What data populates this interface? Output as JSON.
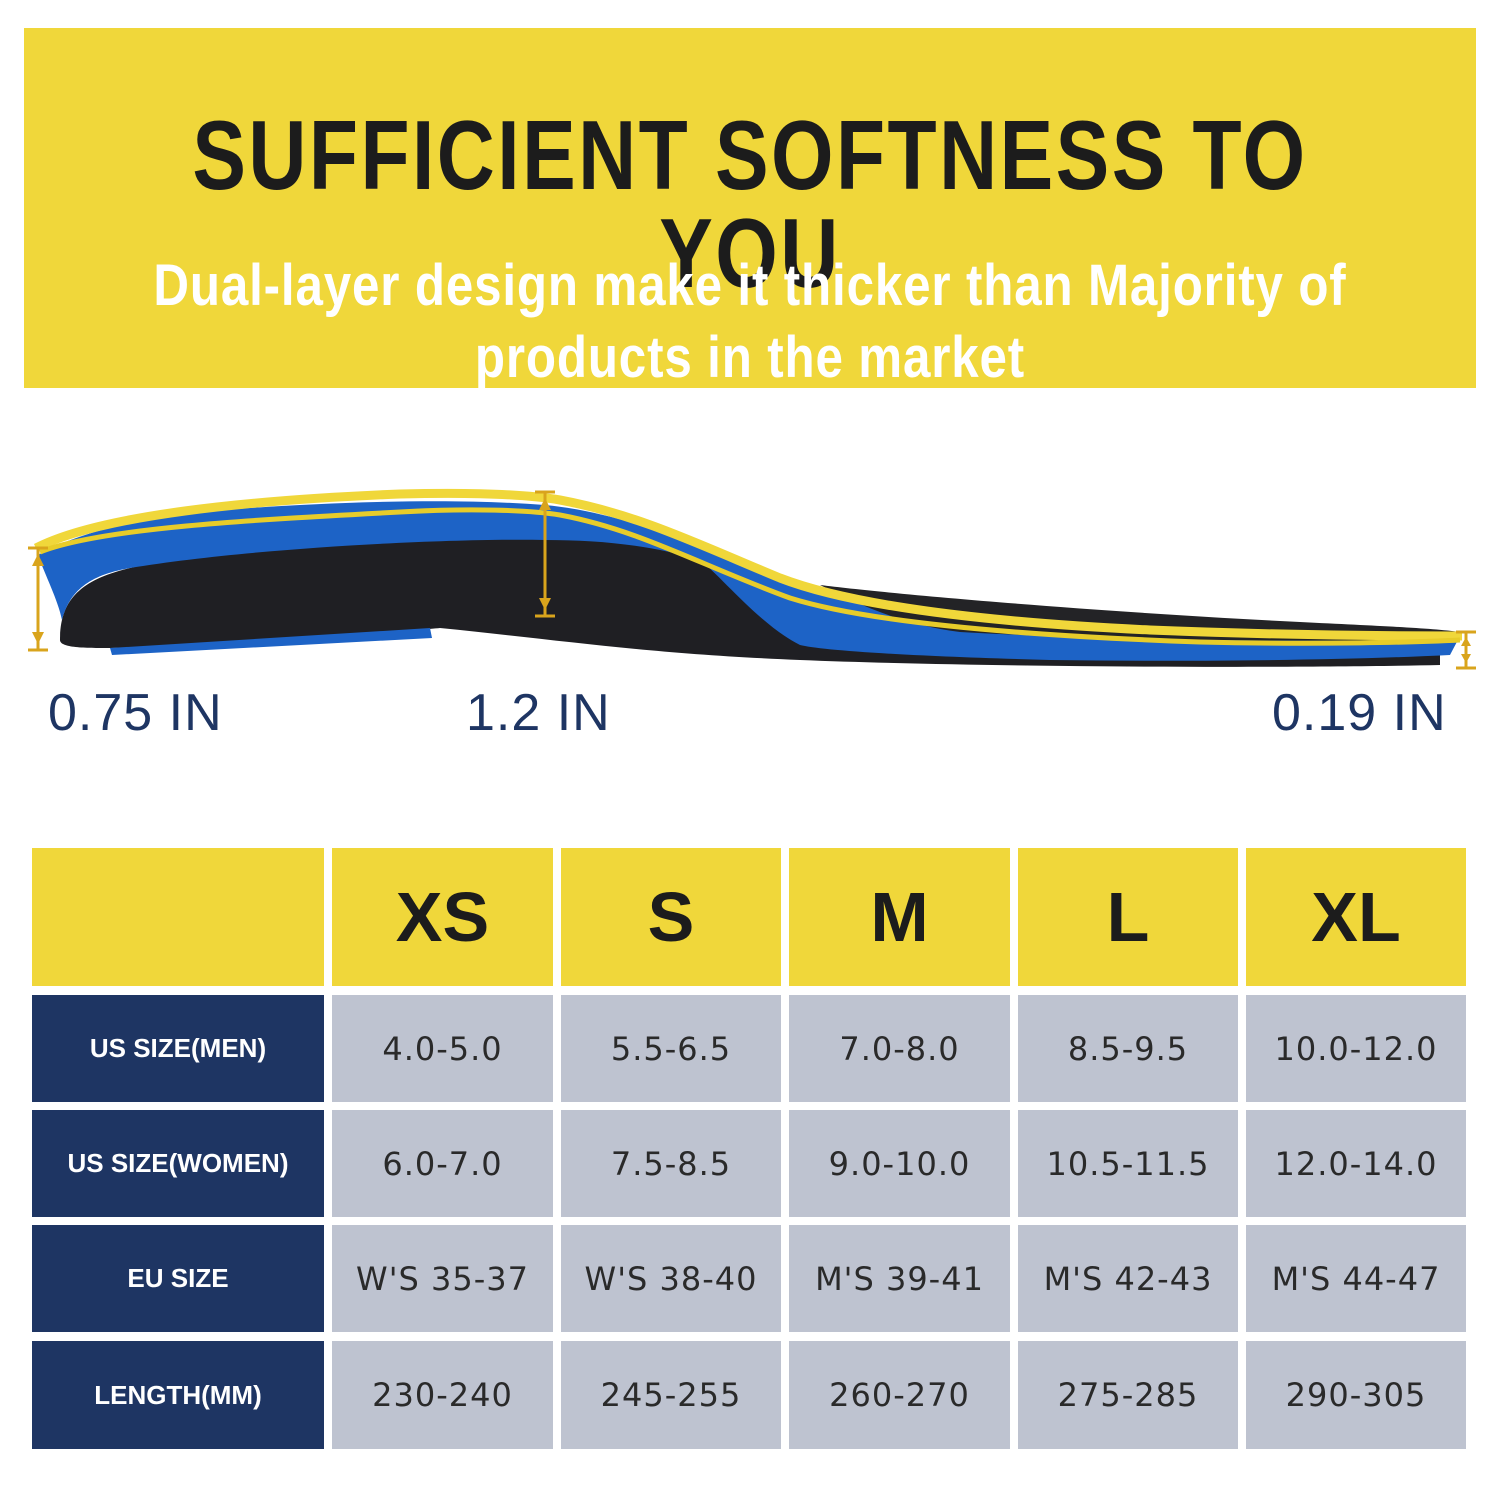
{
  "banner": {
    "title": "SUFFICIENT SOFTNESS TO YOU",
    "subtitle_line1": "Dual-layer design make it thicker than Majority of",
    "subtitle_line2": "products in the market",
    "color": "#f0d73a"
  },
  "measurements": {
    "heel": "0.75 IN",
    "arch": "1.2 IN",
    "toe": "0.19 IN"
  },
  "size_table": {
    "columns": [
      "XS",
      "S",
      "M",
      "L",
      "XL"
    ],
    "rows": [
      {
        "label": "US SIZE(MEN)",
        "values": [
          "4.0-5.0",
          "5.5-6.5",
          "7.0-8.0",
          "8.5-9.5",
          "10.0-12.0"
        ]
      },
      {
        "label": "US SIZE(WOMEN)",
        "values": [
          "6.0-7.0",
          "7.5-8.5",
          "9.0-10.0",
          "10.5-11.5",
          "12.0-14.0"
        ]
      },
      {
        "label": "EU SIZE",
        "values": [
          "W'S 35-37",
          "W'S 38-40",
          "M'S 39-41",
          "M'S 42-43",
          "M'S 44-47"
        ]
      },
      {
        "label": "LENGTH(MM)",
        "values": [
          "230-240",
          "245-255",
          "260-270",
          "275-285",
          "290-305"
        ]
      }
    ],
    "header_color": "#f0d73a",
    "row_label_color": "#1e3563",
    "value_color": "#bec3d0"
  }
}
